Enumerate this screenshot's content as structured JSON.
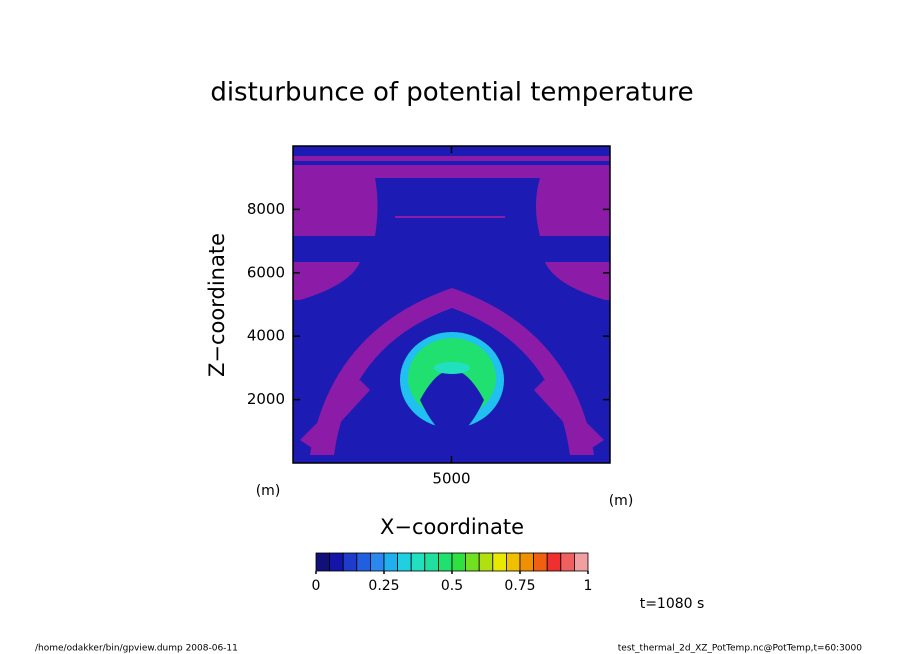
{
  "chart_data": {
    "type": "contour",
    "title": "disturbunce of potential temperature",
    "x_label": "X−coordinate",
    "y_label": "Z−coordinate",
    "x_unit": "(m)",
    "y_unit": "(m)",
    "xlim": [
      0,
      10000
    ],
    "ylim": [
      0,
      10000
    ],
    "xticks": [
      5000
    ],
    "yticks": [
      2000,
      4000,
      6000,
      8000
    ],
    "colorbar": {
      "levels": [
        0,
        0.05,
        0.1,
        0.15,
        0.2,
        0.25,
        0.3,
        0.35,
        0.4,
        0.45,
        0.5,
        0.55,
        0.6,
        0.65,
        0.7,
        0.75,
        0.8,
        0.85,
        0.9,
        0.95,
        1
      ],
      "colors": [
        "#10107a",
        "#1414a8",
        "#1e3ccc",
        "#2060e0",
        "#2a88f0",
        "#20b0f0",
        "#20d0e0",
        "#20e0c0",
        "#20e0a0",
        "#20e070",
        "#30e040",
        "#70e020",
        "#b0e010",
        "#e8e800",
        "#f0c000",
        "#f09000",
        "#f06010",
        "#f03030",
        "#f06060",
        "#f0a0a0"
      ],
      "ticks": [
        0,
        0.25,
        0.5,
        0.75,
        1
      ]
    },
    "annotation": "t=1080 s"
  },
  "footer": {
    "left": "/home/odakker/bin/gpview.dump  2008-06-11",
    "right": "test_thermal_2d_XZ_PotTemp.nc@PotTemp,t=60:3000"
  }
}
